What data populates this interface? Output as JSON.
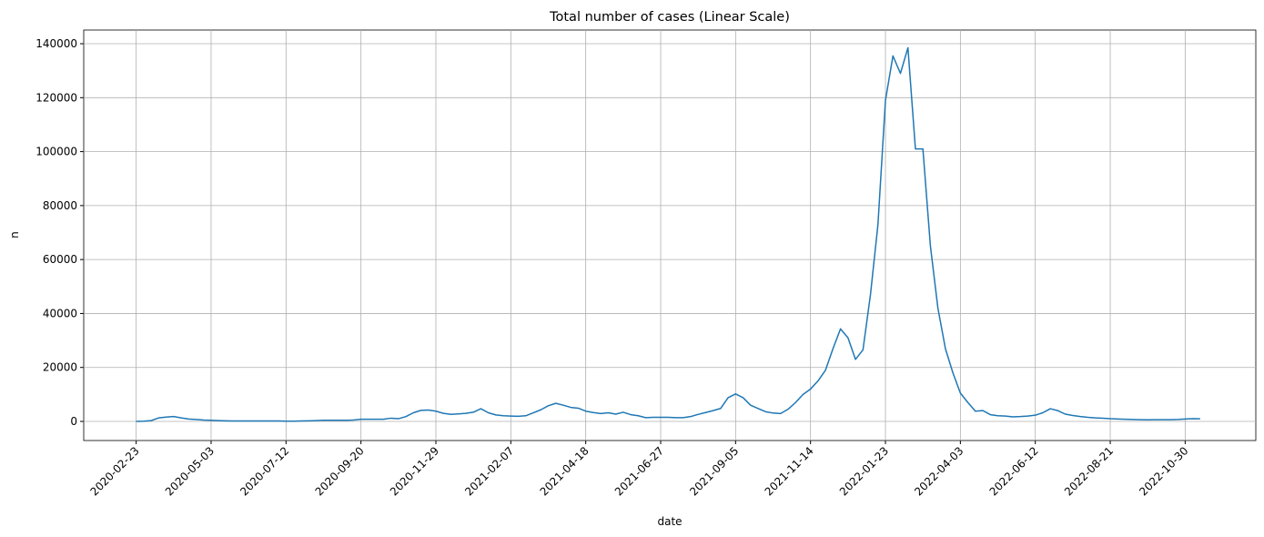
{
  "chart_data": {
    "type": "line",
    "title": "Total number of cases (Linear Scale)",
    "xlabel": "date",
    "ylabel": "n",
    "x": [
      "2020-02-23",
      "2020-03-01",
      "2020-03-08",
      "2020-03-15",
      "2020-03-22",
      "2020-03-29",
      "2020-04-05",
      "2020-04-12",
      "2020-04-19",
      "2020-04-26",
      "2020-05-03",
      "2020-05-10",
      "2020-05-17",
      "2020-05-24",
      "2020-05-31",
      "2020-06-07",
      "2020-06-14",
      "2020-06-21",
      "2020-06-28",
      "2020-07-05",
      "2020-07-12",
      "2020-07-19",
      "2020-07-26",
      "2020-08-02",
      "2020-08-09",
      "2020-08-16",
      "2020-08-23",
      "2020-08-30",
      "2020-09-06",
      "2020-09-13",
      "2020-09-20",
      "2020-09-27",
      "2020-10-04",
      "2020-10-11",
      "2020-10-18",
      "2020-10-25",
      "2020-11-01",
      "2020-11-08",
      "2020-11-15",
      "2020-11-22",
      "2020-11-29",
      "2020-12-06",
      "2020-12-13",
      "2020-12-20",
      "2020-12-27",
      "2021-01-03",
      "2021-01-10",
      "2021-01-17",
      "2021-01-24",
      "2021-01-31",
      "2021-02-07",
      "2021-02-14",
      "2021-02-21",
      "2021-02-28",
      "2021-03-07",
      "2021-03-14",
      "2021-03-21",
      "2021-03-28",
      "2021-04-04",
      "2021-04-11",
      "2021-04-18",
      "2021-04-25",
      "2021-05-02",
      "2021-05-09",
      "2021-05-16",
      "2021-05-23",
      "2021-05-30",
      "2021-06-06",
      "2021-06-13",
      "2021-06-20",
      "2021-06-27",
      "2021-07-04",
      "2021-07-11",
      "2021-07-18",
      "2021-07-25",
      "2021-08-01",
      "2021-08-08",
      "2021-08-15",
      "2021-08-22",
      "2021-08-29",
      "2021-09-05",
      "2021-09-12",
      "2021-09-19",
      "2021-09-26",
      "2021-10-03",
      "2021-10-10",
      "2021-10-17",
      "2021-10-24",
      "2021-10-31",
      "2021-11-07",
      "2021-11-14",
      "2021-11-21",
      "2021-11-28",
      "2021-12-05",
      "2021-12-12",
      "2021-12-19",
      "2021-12-26",
      "2022-01-02",
      "2022-01-09",
      "2022-01-16",
      "2022-01-23",
      "2022-01-30",
      "2022-02-06",
      "2022-02-13",
      "2022-02-20",
      "2022-02-27",
      "2022-03-06",
      "2022-03-13",
      "2022-03-20",
      "2022-03-27",
      "2022-04-03",
      "2022-04-10",
      "2022-04-17",
      "2022-04-24",
      "2022-05-01",
      "2022-05-08",
      "2022-05-15",
      "2022-05-22",
      "2022-05-29",
      "2022-06-05",
      "2022-06-12",
      "2022-06-19",
      "2022-06-26",
      "2022-07-03",
      "2022-07-10",
      "2022-07-17",
      "2022-07-24",
      "2022-07-31",
      "2022-08-07",
      "2022-08-14",
      "2022-08-21",
      "2022-08-28",
      "2022-09-04",
      "2022-09-11",
      "2022-09-18",
      "2022-09-25",
      "2022-10-02",
      "2022-10-09",
      "2022-10-16",
      "2022-10-23",
      "2022-10-30",
      "2022-11-06",
      "2022-11-13"
    ],
    "values": [
      0,
      100,
      300,
      1300,
      1600,
      1800,
      1300,
      900,
      700,
      500,
      400,
      300,
      200,
      150,
      150,
      150,
      150,
      150,
      150,
      150,
      100,
      100,
      150,
      200,
      300,
      400,
      400,
      400,
      400,
      500,
      800,
      800,
      800,
      800,
      1200,
      1000,
      1800,
      3200,
      4100,
      4200,
      3800,
      3000,
      2600,
      2800,
      3000,
      3400,
      4700,
      3200,
      2400,
      2100,
      2000,
      1900,
      2100,
      3200,
      4300,
      5800,
      6700,
      6000,
      5200,
      4900,
      3800,
      3300,
      2900,
      3200,
      2700,
      3400,
      2500,
      2100,
      1400,
      1500,
      1500,
      1500,
      1400,
      1400,
      1800,
      2600,
      3300,
      4000,
      4800,
      8800,
      10200,
      8800,
      6000,
      4800,
      3600,
      3100,
      2900,
      4500,
      7000,
      10000,
      12000,
      15000,
      19000,
      27000,
      34300,
      31000,
      23000,
      26500,
      47000,
      73000,
      119000,
      135500,
      129000,
      138500,
      101000,
      101000,
      65000,
      42000,
      27000,
      18000,
      10500,
      7000,
      3800,
      4000,
      2500,
      2100,
      2000,
      1700,
      1800,
      2000,
      2300,
      3200,
      4700,
      4000,
      2700,
      2200,
      1800,
      1500,
      1300,
      1200,
      1000,
      900,
      800,
      700,
      650,
      600,
      650,
      650,
      650,
      700,
      900,
      1000,
      950
    ],
    "color": "#1f77b4",
    "xlim": [
      "2020-01-05",
      "2023-01-04"
    ],
    "xticks": [
      "2020-02-23",
      "2020-05-03",
      "2020-07-12",
      "2020-09-20",
      "2020-11-29",
      "2021-02-07",
      "2021-04-18",
      "2021-06-27",
      "2021-09-05",
      "2021-11-14",
      "2022-01-23",
      "2022-04-03",
      "2022-06-12",
      "2022-08-21",
      "2022-10-30"
    ],
    "ylim": [
      -7085,
      145070
    ],
    "yticks": [
      0,
      20000,
      40000,
      60000,
      80000,
      100000,
      120000,
      140000
    ],
    "grid": true
  }
}
